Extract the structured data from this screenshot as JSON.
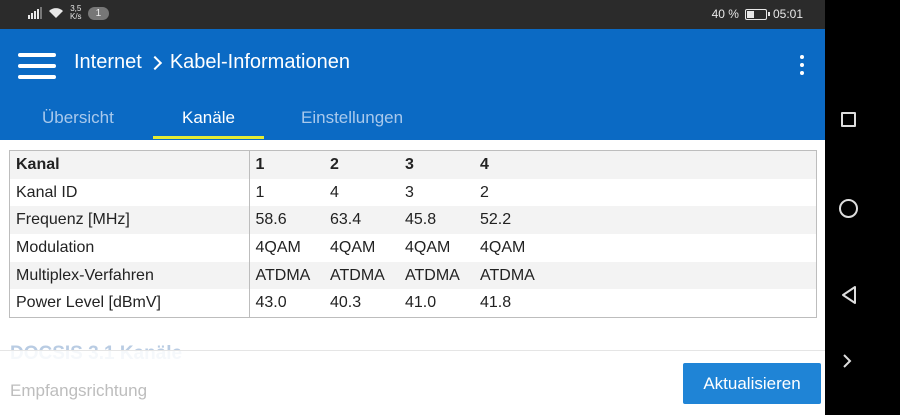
{
  "status_bar": {
    "speed_value": "3,5",
    "speed_unit": "K/s",
    "notification_count": "1",
    "battery_percent": "40 %",
    "battery_level": 0.4,
    "time": "05:01"
  },
  "header": {
    "breadcrumb_root": "Internet",
    "breadcrumb_current": "Kabel-Informationen"
  },
  "tabs": [
    {
      "label": "Übersicht"
    },
    {
      "label": "Kanäle"
    },
    {
      "label": "Einstellungen"
    }
  ],
  "active_tab": "Kanäle",
  "channel_table": {
    "rows": [
      {
        "label": "Kanal",
        "values": [
          "1",
          "2",
          "3",
          "4"
        ]
      },
      {
        "label": "Kanal ID",
        "values": [
          "1",
          "4",
          "3",
          "2"
        ]
      },
      {
        "label": "Frequenz [MHz]",
        "values": [
          "58.6",
          "63.4",
          "45.8",
          "52.2"
        ]
      },
      {
        "label": "Modulation",
        "values": [
          "4QAM",
          "4QAM",
          "4QAM",
          "4QAM"
        ]
      },
      {
        "label": "Multiplex-Verfahren",
        "values": [
          "ATDMA",
          "ATDMA",
          "ATDMA",
          "ATDMA"
        ]
      },
      {
        "label": "Power Level [dBmV]",
        "values": [
          "43.0",
          "40.3",
          "41.0",
          "41.8"
        ]
      }
    ]
  },
  "docsis_section": {
    "title": "DOCSIS 3.1 Kanäle",
    "subtitle": "Empfangsrichtung"
  },
  "refresh_button": {
    "label": "Aktualisieren"
  },
  "colors": {
    "app_bar": "#0b6ac4",
    "tab_indicator": "#e4ec34",
    "button": "#1f84d6"
  }
}
